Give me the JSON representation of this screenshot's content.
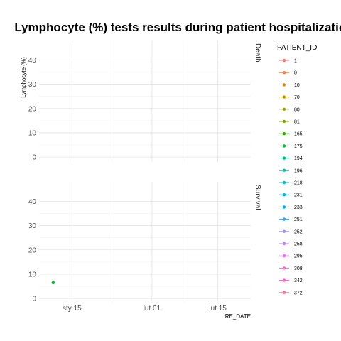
{
  "chart_data": {
    "type": "line",
    "title": "Lymphocyte (%) tests results during patient hospitalization",
    "xlabel": "RE_DATE",
    "ylabel": "Lymphocyte (%)",
    "x_range": [
      "2020-01-08",
      "2020-02-22"
    ],
    "x_ticks": [
      {
        "date": "2020-01-15",
        "label": "sty 15"
      },
      {
        "date": "2020-02-01",
        "label": "lut 01"
      },
      {
        "date": "2020-02-15",
        "label": "lut 15"
      }
    ],
    "ylim": [
      -2,
      48
    ],
    "y_ticks": [
      0,
      10,
      20,
      30,
      40
    ],
    "grid": true,
    "facets": [
      "Death",
      "Survival"
    ],
    "legend": {
      "title": "PATIENT_ID",
      "position": "right",
      "entries": [
        {
          "label": "1",
          "color": "#F8766D"
        },
        {
          "label": "8",
          "color": "#EE8043"
        },
        {
          "label": "10",
          "color": "#DB8E00"
        },
        {
          "label": "70",
          "color": "#C49A00"
        },
        {
          "label": "80",
          "color": "#A3A500"
        },
        {
          "label": "81",
          "color": "#7CAE00"
        },
        {
          "label": "165",
          "color": "#39B600"
        },
        {
          "label": "175",
          "color": "#00BA38"
        },
        {
          "label": "194",
          "color": "#00BF7D"
        },
        {
          "label": "196",
          "color": "#00C1A3"
        },
        {
          "label": "218",
          "color": "#00BFC4"
        },
        {
          "label": "231",
          "color": "#00BAE0"
        },
        {
          "label": "233",
          "color": "#00B0F6"
        },
        {
          "label": "251",
          "color": "#35A2FF"
        },
        {
          "label": "252",
          "color": "#9590FF"
        },
        {
          "label": "258",
          "color": "#C77CFF"
        },
        {
          "label": "295",
          "color": "#E76BF3"
        },
        {
          "label": "308",
          "color": "#FA62DB"
        },
        {
          "label": "342",
          "color": "#FF62BC"
        },
        {
          "label": "372",
          "color": "#FF6C91"
        }
      ]
    },
    "series": [
      {
        "name": "175",
        "facet": "Survival",
        "color": "#00BA38",
        "points": [
          {
            "x": "2020-01-11",
            "y": 6.5
          }
        ]
      }
    ]
  }
}
